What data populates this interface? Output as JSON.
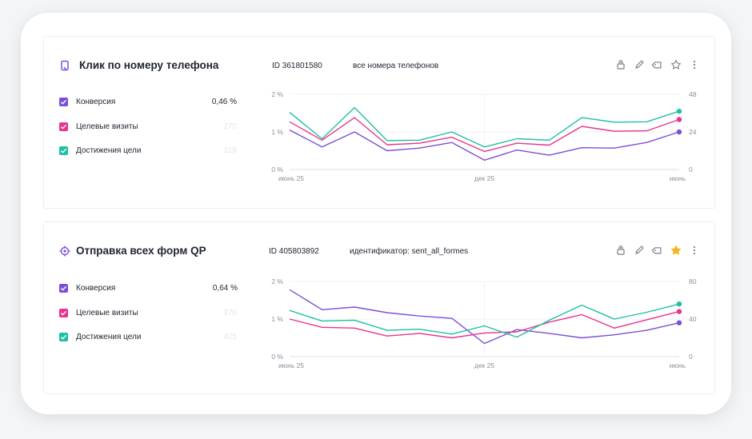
{
  "goals": [
    {
      "icon": "phone-icon",
      "title": "Клик по номеру телефона",
      "id_text": "ID 361801580",
      "condition": "все номера телефонов",
      "starred": false,
      "metrics": [
        {
          "label": "Конверсия",
          "value": "0,46 %",
          "color": "#7b4fd9",
          "value_style": "strong"
        },
        {
          "label": "Целевые визиты",
          "value": "270",
          "color": "#e8338f",
          "value_style": "faint"
        },
        {
          "label": "Достижения цели",
          "value": "318",
          "color": "#1fc0a5",
          "value_style": "faint"
        }
      ],
      "chart_data": {
        "type": "line",
        "y_left_ticks": [
          "0 %",
          "1 %",
          "2 %"
        ],
        "y_left_range": [
          0,
          2
        ],
        "y_right_ticks": [
          "0",
          "24",
          "48"
        ],
        "y_right_range": [
          0,
          48
        ],
        "x_ticks": [
          "июнь 25",
          "дек 25",
          "июнь"
        ],
        "x_tick_index": [
          0,
          12,
          24
        ],
        "grid": true,
        "series": [
          {
            "color": "#7b4fd9",
            "axis": "left",
            "values": [
              1.05,
              0.6,
              1.0,
              0.5,
              0.57,
              0.72,
              0.25,
              0.52,
              0.38,
              0.58,
              0.57,
              0.72,
              1.0
            ]
          },
          {
            "color": "#e8338f",
            "axis": "left",
            "values": [
              1.27,
              0.78,
              1.38,
              0.66,
              0.7,
              0.86,
              0.48,
              0.7,
              0.65,
              1.15,
              1.02,
              1.03,
              1.33
            ]
          },
          {
            "color": "#1fc0a5",
            "axis": "left",
            "values": [
              1.52,
              0.82,
              1.65,
              0.77,
              0.78,
              1.0,
              0.6,
              0.82,
              0.78,
              1.38,
              1.26,
              1.27,
              1.55
            ]
          }
        ]
      }
    },
    {
      "icon": "target-icon",
      "title": "Отправка всех форм QP",
      "id_text": "ID 405803892",
      "condition": "идентификатор: sent_all_formes",
      "starred": true,
      "metrics": [
        {
          "label": "Конверсия",
          "value": "0,64 %",
          "color": "#7b4fd9",
          "value_style": "strong"
        },
        {
          "label": "Целевые визиты",
          "value": "370",
          "color": "#e8338f",
          "value_style": "faint"
        },
        {
          "label": "Достижения цели",
          "value": "425",
          "color": "#1fc0a5",
          "value_style": "faint"
        }
      ],
      "chart_data": {
        "type": "line",
        "y_left_ticks": [
          "0 %",
          "1 %",
          "2 %"
        ],
        "y_left_range": [
          0,
          2
        ],
        "y_right_ticks": [
          "0",
          "40",
          "80"
        ],
        "y_right_range": [
          0,
          80
        ],
        "x_ticks": [
          "июнь 25",
          "дек 25",
          "июнь"
        ],
        "x_tick_index": [
          0,
          12,
          24
        ],
        "grid": true,
        "series": [
          {
            "color": "#7b4fd9",
            "axis": "left",
            "values": [
              1.78,
              1.25,
              1.32,
              1.17,
              1.08,
              1.02,
              0.35,
              0.72,
              0.62,
              0.5,
              0.58,
              0.7,
              0.9
            ]
          },
          {
            "color": "#e8338f",
            "axis": "left",
            "values": [
              1.0,
              0.78,
              0.76,
              0.55,
              0.62,
              0.5,
              0.63,
              0.66,
              0.92,
              1.12,
              0.76,
              0.98,
              1.2
            ]
          },
          {
            "color": "#1fc0a5",
            "axis": "left",
            "values": [
              1.23,
              0.95,
              0.97,
              0.7,
              0.73,
              0.6,
              0.82,
              0.52,
              0.97,
              1.37,
              1.0,
              1.18,
              1.4
            ]
          }
        ]
      }
    }
  ]
}
